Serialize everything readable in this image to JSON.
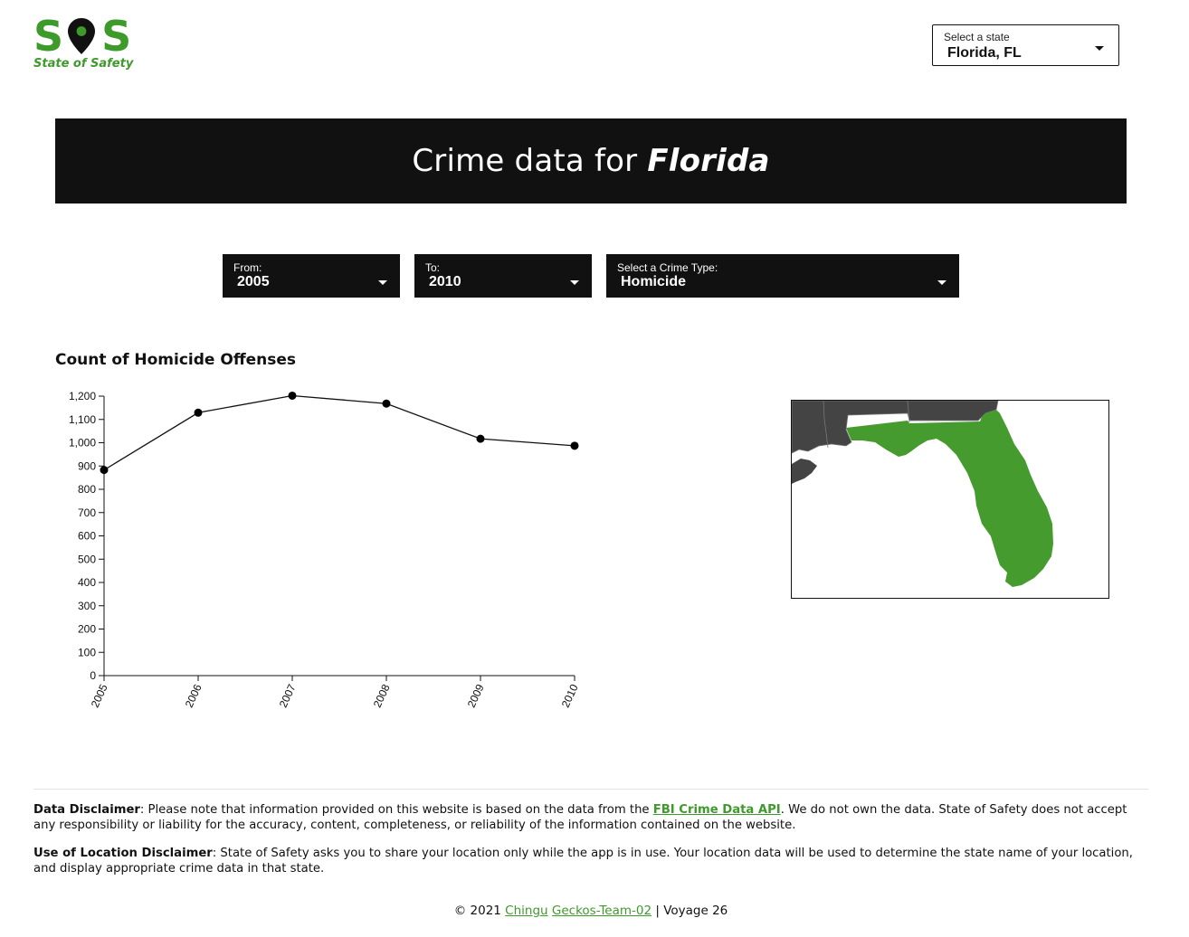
{
  "logo": {
    "letter_left": "S",
    "letter_right": "S",
    "tagline": "State of Safety",
    "pin_icon": "map-pin-icon"
  },
  "state_select": {
    "label": "Select a state",
    "value": "Florida, FL"
  },
  "banner": {
    "prefix": "Crime data for",
    "state": "Florida"
  },
  "filters": {
    "from": {
      "label": "From:",
      "value": "2005"
    },
    "to": {
      "label": "To:",
      "value": "2010"
    },
    "crime": {
      "label": "Select a Crime Type:",
      "value": "Homicide"
    }
  },
  "chart_title": "Count of Homicide Offenses",
  "chart_data": {
    "type": "line",
    "x": [
      "2005",
      "2006",
      "2007",
      "2008",
      "2009",
      "2010"
    ],
    "values": [
      883,
      1129,
      1202,
      1168,
      1017,
      987
    ],
    "ylim": [
      0,
      1200
    ],
    "yticks": [
      0,
      100,
      200,
      300,
      400,
      500,
      600,
      700,
      800,
      900,
      1000,
      1100,
      1200
    ],
    "ytick_labels": [
      "0",
      "100",
      "200",
      "300",
      "400",
      "500",
      "600",
      "700",
      "800",
      "900",
      "1,000",
      "1,100",
      "1,200"
    ],
    "xlabel": "",
    "ylabel": "",
    "grid": false
  },
  "map": {
    "highlight_color": "#469b2f",
    "neighbor_color": "#444444"
  },
  "colors": {
    "accent": "#3f9a2c",
    "banner_bg": "#111111"
  },
  "footer": {
    "data_disclaimer": {
      "title": "Data Disclaimer",
      "text_before": ": Please note that information provided on this website is based on the data from the ",
      "link": "FBI Crime Data API",
      "text_after": ". We do not own the data. State of Safety does not accept any responsibility or liability for the accuracy, content, completeness, or reliability of the information contained on the website."
    },
    "location_disclaimer": {
      "title": "Use of Location Disclaimer",
      "text": ": State of Safety asks you to share your location only while the app is in use. Your location data will be used to determine the state name of your location, and display appropriate crime data in that state."
    },
    "credits": {
      "copyright": "© 2021",
      "link_org": "Chingu",
      "link_team": "Geckos-Team-02",
      "suffix": "| Voyage 26"
    }
  }
}
